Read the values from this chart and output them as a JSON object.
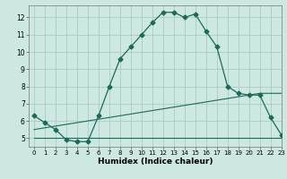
{
  "xlabel": "Humidex (Indice chaleur)",
  "background_color": "#cce8e0",
  "grid_color": "#aaccc4",
  "line_color": "#1a6b5a",
  "xlim": [
    -0.5,
    23
  ],
  "ylim": [
    4.5,
    12.7
  ],
  "yticks": [
    5,
    6,
    7,
    8,
    9,
    10,
    11,
    12
  ],
  "xticks": [
    0,
    1,
    2,
    3,
    4,
    5,
    6,
    7,
    8,
    9,
    10,
    11,
    12,
    13,
    14,
    15,
    16,
    17,
    18,
    19,
    20,
    21,
    22,
    23
  ],
  "line1_x": [
    0,
    1,
    2,
    3,
    4,
    5,
    6,
    7,
    8,
    9,
    10,
    11,
    12,
    13,
    14,
    15,
    16,
    17,
    18,
    19,
    20,
    21,
    22,
    23
  ],
  "line1_y": [
    6.3,
    5.9,
    5.5,
    4.9,
    4.8,
    4.8,
    6.3,
    8.0,
    9.6,
    10.3,
    11.0,
    11.7,
    12.3,
    12.3,
    12.0,
    12.2,
    11.2,
    10.3,
    8.0,
    7.6,
    7.5,
    7.5,
    6.2,
    5.2
  ],
  "line2_x": [
    0,
    23
  ],
  "line2_y": [
    5.0,
    5.0
  ],
  "line3_x": [
    0,
    21,
    23
  ],
  "line3_y": [
    5.5,
    7.6,
    7.6
  ]
}
